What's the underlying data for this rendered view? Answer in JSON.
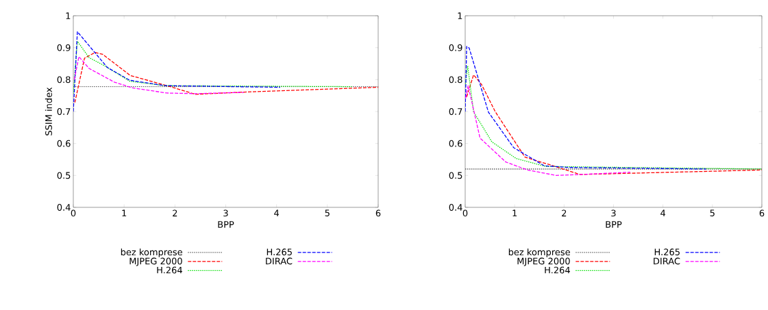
{
  "chart_data": [
    {
      "type": "line",
      "xlabel": "BPP",
      "ylabel": "SSIM index",
      "xlim": [
        0,
        6
      ],
      "ylim": [
        0.4,
        1
      ],
      "xticks": [
        0,
        1,
        2,
        3,
        4,
        5,
        6
      ],
      "yticks": [
        0.4,
        0.5,
        0.6,
        0.7,
        0.8,
        0.9,
        1
      ],
      "legend": "bottom",
      "grid": false,
      "marker": "none",
      "series": [
        {
          "name": "bez komprese",
          "color": "#606060",
          "line_style": "dotted",
          "x": [
            0,
            6
          ],
          "values": [
            0.778,
            0.778
          ]
        },
        {
          "name": "MJPEG 2000",
          "color": "#ff0000",
          "line_style": "dashed",
          "x": [
            0.03,
            0.22,
            0.43,
            0.58,
            1.12,
            1.91,
            2.4,
            3.37,
            6
          ],
          "values": [
            0.728,
            0.867,
            0.885,
            0.879,
            0.813,
            0.778,
            0.754,
            0.761,
            0.776
          ]
        },
        {
          "name": "H.264",
          "color": "#00dd00",
          "line_style": "dotted",
          "x": [
            0,
            0.08,
            0.31,
            0.63,
            1.11,
            1.81,
            5.48
          ],
          "values": [
            0.756,
            0.92,
            0.869,
            0.842,
            0.795,
            0.781,
            0.778
          ]
        },
        {
          "name": "H.265",
          "color": "#0000ff",
          "line_style": "dashed",
          "x": [
            0,
            0.08,
            0.67,
            1.11,
            1.81,
            4.07
          ],
          "values": [
            0.7,
            0.95,
            0.838,
            0.798,
            0.781,
            0.776
          ]
        },
        {
          "name": "DIRAC",
          "color": "#ff00ff",
          "line_style": "dashed",
          "x": [
            0.02,
            0.11,
            0.31,
            0.81,
            1.17,
            1.84,
            2.43,
            3.35
          ],
          "values": [
            0.8,
            0.872,
            0.835,
            0.792,
            0.774,
            0.758,
            0.756,
            0.76
          ]
        }
      ]
    },
    {
      "type": "line",
      "xlabel": "BPP",
      "xlim": [
        0,
        6
      ],
      "ylim": [
        0.4,
        1
      ],
      "xticks": [
        0,
        1,
        2,
        3,
        4,
        5,
        6
      ],
      "yticks": [
        0.4,
        0.5,
        0.6,
        0.7,
        0.8,
        0.9,
        1
      ],
      "legend": "bottom",
      "grid": false,
      "marker": "none",
      "series": [
        {
          "name": "bez komprese",
          "color": "#606060",
          "line_style": "dotted",
          "x": [
            0,
            6
          ],
          "values": [
            0.52,
            0.52
          ]
        },
        {
          "name": "MJPEG 2000",
          "color": "#ff0000",
          "line_style": "dashed",
          "x": [
            0.03,
            0.17,
            0.33,
            0.61,
            1.21,
            1.72,
            2.32,
            2.88,
            6
          ],
          "values": [
            0.746,
            0.815,
            0.785,
            0.699,
            0.557,
            0.533,
            0.503,
            0.505,
            0.517
          ]
        },
        {
          "name": "H.264",
          "color": "#00dd00",
          "line_style": "dotted",
          "x": [
            0,
            0.05,
            0.17,
            0.54,
            1.03,
            1.63,
            6
          ],
          "values": [
            0.78,
            0.843,
            0.699,
            0.605,
            0.553,
            0.528,
            0.52
          ]
        },
        {
          "name": "H.265",
          "color": "#0000ff",
          "line_style": "dashed",
          "x": [
            0,
            0.03,
            0.08,
            0.47,
            0.98,
            1.6,
            2.09,
            4.87
          ],
          "values": [
            0.7,
            0.904,
            0.899,
            0.698,
            0.587,
            0.53,
            0.525,
            0.52
          ]
        },
        {
          "name": "DIRAC",
          "color": "#ff00ff",
          "line_style": "dashed",
          "x": [
            0.01,
            0.06,
            0.3,
            0.82,
            1.26,
            1.84,
            2.37,
            3.34
          ],
          "values": [
            0.742,
            0.781,
            0.617,
            0.542,
            0.517,
            0.5,
            0.503,
            0.51
          ]
        }
      ]
    }
  ]
}
